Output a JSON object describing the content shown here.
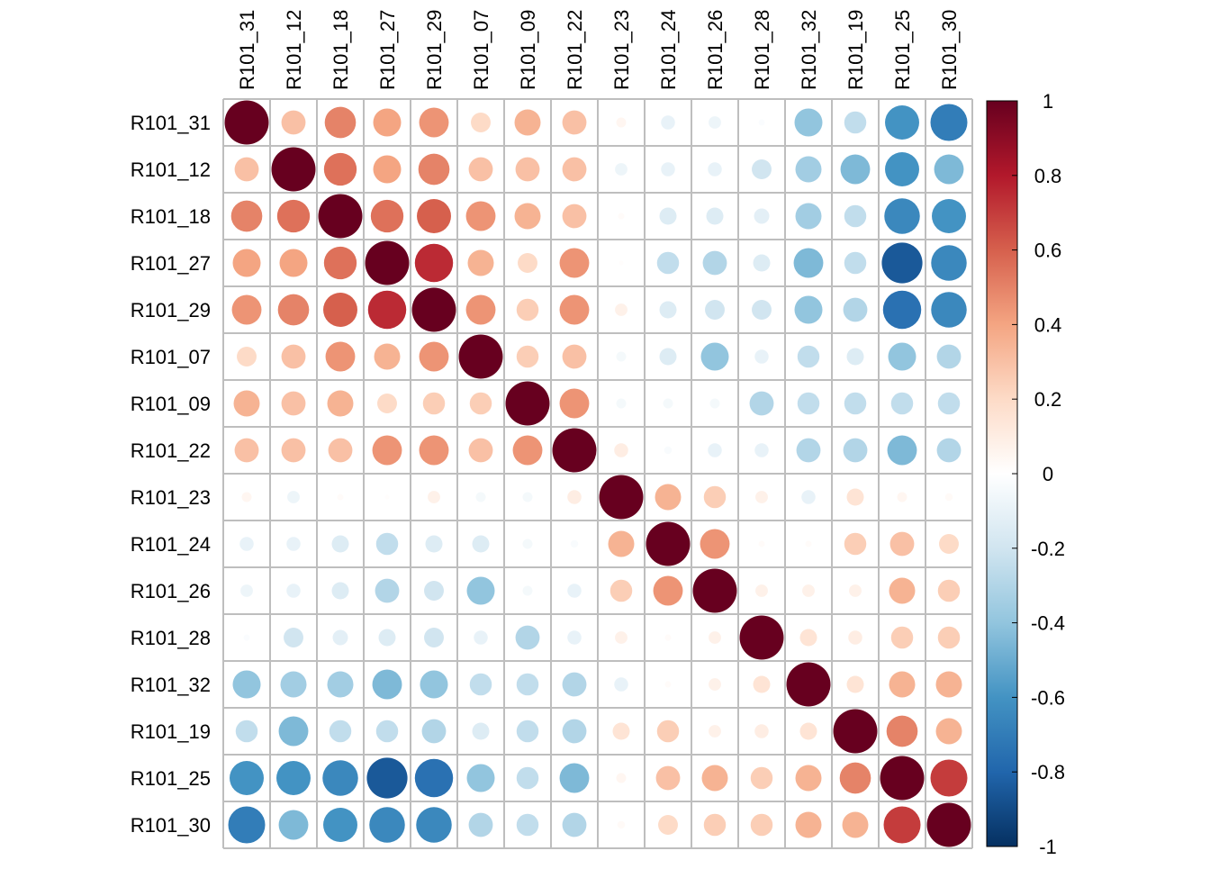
{
  "chart_data": {
    "type": "heatmap",
    "title": "",
    "xlabel": "",
    "ylabel": "",
    "labels": [
      "R101_31",
      "R101_12",
      "R101_18",
      "R101_27",
      "R101_29",
      "R101_07",
      "R101_09",
      "R101_22",
      "R101_23",
      "R101_24",
      "R101_26",
      "R101_28",
      "R101_32",
      "R101_19",
      "R101_25",
      "R101_30"
    ],
    "matrix": [
      [
        1.0,
        0.3,
        0.5,
        0.4,
        0.45,
        0.2,
        0.35,
        0.3,
        0.05,
        -0.1,
        -0.08,
        -0.02,
        -0.4,
        -0.25,
        -0.6,
        -0.7
      ],
      [
        0.3,
        1.0,
        0.55,
        0.4,
        0.5,
        0.3,
        0.3,
        0.3,
        -0.08,
        -0.1,
        -0.1,
        -0.2,
        -0.35,
        -0.45,
        -0.6,
        -0.45
      ],
      [
        0.5,
        0.55,
        1.0,
        0.55,
        0.6,
        0.45,
        0.35,
        0.3,
        0.02,
        -0.15,
        -0.15,
        -0.12,
        -0.35,
        -0.25,
        -0.65,
        -0.6
      ],
      [
        0.4,
        0.4,
        0.55,
        1.0,
        0.75,
        0.35,
        0.2,
        0.45,
        0.01,
        -0.25,
        -0.3,
        -0.15,
        -0.45,
        -0.25,
        -0.85,
        -0.65
      ],
      [
        0.45,
        0.5,
        0.6,
        0.75,
        1.0,
        0.45,
        0.25,
        0.45,
        0.08,
        -0.15,
        -0.2,
        -0.2,
        -0.4,
        -0.3,
        -0.75,
        -0.65
      ],
      [
        0.2,
        0.3,
        0.45,
        0.35,
        0.45,
        1.0,
        0.25,
        0.3,
        -0.05,
        -0.15,
        -0.4,
        -0.1,
        -0.25,
        -0.15,
        -0.4,
        -0.3
      ],
      [
        0.35,
        0.3,
        0.35,
        0.2,
        0.25,
        0.25,
        1.0,
        0.45,
        -0.05,
        -0.05,
        -0.05,
        -0.3,
        -0.25,
        -0.25,
        -0.25,
        -0.25
      ],
      [
        0.3,
        0.3,
        0.3,
        0.45,
        0.45,
        0.3,
        0.45,
        1.0,
        0.1,
        -0.03,
        -0.1,
        -0.1,
        -0.3,
        -0.3,
        -0.45,
        -0.3
      ],
      [
        0.05,
        -0.08,
        0.02,
        0.01,
        0.08,
        -0.05,
        -0.05,
        0.1,
        1.0,
        0.35,
        0.25,
        0.08,
        -0.1,
        0.15,
        0.05,
        0.03
      ],
      [
        -0.1,
        -0.1,
        -0.15,
        -0.25,
        -0.15,
        -0.15,
        -0.05,
        -0.03,
        0.35,
        1.0,
        0.45,
        0.02,
        0.02,
        0.25,
        0.3,
        0.2
      ],
      [
        -0.08,
        -0.1,
        -0.15,
        -0.3,
        -0.2,
        -0.4,
        -0.05,
        -0.1,
        0.25,
        0.45,
        1.0,
        0.08,
        0.08,
        0.08,
        0.35,
        0.25
      ],
      [
        -0.02,
        -0.2,
        -0.12,
        -0.15,
        -0.2,
        -0.1,
        -0.3,
        -0.1,
        0.08,
        0.02,
        0.08,
        1.0,
        0.15,
        0.1,
        0.25,
        0.25
      ],
      [
        -0.4,
        -0.35,
        -0.35,
        -0.45,
        -0.4,
        -0.25,
        -0.25,
        -0.3,
        -0.1,
        0.02,
        0.08,
        0.15,
        1.0,
        0.15,
        0.35,
        0.35
      ],
      [
        -0.25,
        -0.45,
        -0.25,
        -0.25,
        -0.3,
        -0.15,
        -0.25,
        -0.3,
        0.15,
        0.25,
        0.08,
        0.1,
        0.15,
        1.0,
        0.5,
        0.35
      ],
      [
        -0.6,
        -0.6,
        -0.65,
        -0.85,
        -0.75,
        -0.4,
        -0.25,
        -0.45,
        0.05,
        0.3,
        0.35,
        0.25,
        0.35,
        0.5,
        1.0,
        0.7
      ],
      [
        -0.7,
        -0.45,
        -0.6,
        -0.65,
        -0.65,
        -0.3,
        -0.25,
        -0.3,
        0.03,
        0.2,
        0.25,
        0.25,
        0.35,
        0.35,
        0.7,
        1.0
      ]
    ],
    "colorbar": {
      "range": [
        -1,
        1
      ],
      "ticks": [
        "1",
        "0.8",
        "0.6",
        "0.4",
        "0.2",
        "0",
        "-0.2",
        "-0.4",
        "-0.6",
        "-0.8",
        "-1"
      ],
      "tick_values": [
        1,
        0.8,
        0.6,
        0.4,
        0.2,
        0,
        -0.2,
        -0.4,
        -0.6,
        -0.8,
        -1
      ],
      "colors": [
        "#67001F",
        "#B2182B",
        "#D6604D",
        "#F4A582",
        "#FDDBC7",
        "#FFFFFF",
        "#D1E5F0",
        "#92C5DE",
        "#4393C3",
        "#2166AC",
        "#053061"
      ]
    },
    "grid": true,
    "legend_position": "right"
  }
}
